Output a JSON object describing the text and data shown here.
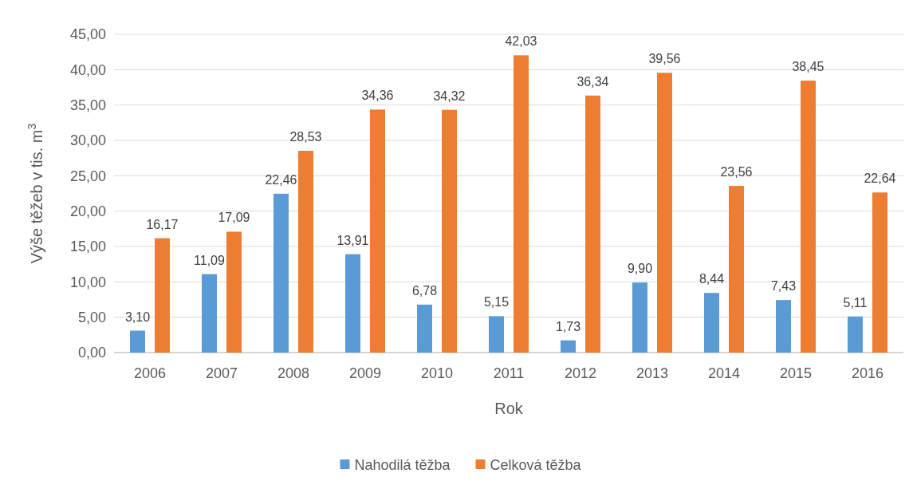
{
  "chart_data": {
    "type": "bar",
    "xlabel": "Rok",
    "ylabel": "Výše těžeb v tis. m$^{3}$",
    "categories": [
      "2006",
      "2007",
      "2008",
      "2009",
      "2010",
      "2011",
      "2012",
      "2013",
      "2014",
      "2015",
      "2016"
    ],
    "series": [
      {
        "name": "Nahodilá těžba",
        "color": "#5b9bd5",
        "values": [
          3.1,
          11.09,
          22.46,
          13.91,
          6.78,
          5.15,
          1.73,
          9.9,
          8.44,
          7.43,
          5.11
        ],
        "value_labels": [
          "3,10",
          "11,09",
          "22,46",
          "13,91",
          "6,78",
          "5,15",
          "1,73",
          "9,90",
          "8,44",
          "7,43",
          "5,11"
        ]
      },
      {
        "name": "Celková těžba",
        "color": "#ed7d31",
        "values": [
          16.17,
          17.09,
          28.53,
          34.36,
          34.32,
          42.03,
          36.34,
          39.56,
          23.56,
          38.45,
          22.64
        ],
        "value_labels": [
          "16,17",
          "17,09",
          "28,53",
          "34,36",
          "34,32",
          "42,03",
          "36,34",
          "39,56",
          "23,56",
          "38,45",
          "22,64"
        ]
      }
    ],
    "ylim": [
      0,
      45
    ],
    "yticks": [
      {
        "value": 0,
        "label": "0,00"
      },
      {
        "value": 5,
        "label": "5,00"
      },
      {
        "value": 10,
        "label": "10,00"
      },
      {
        "value": 15,
        "label": "15,00"
      },
      {
        "value": 20,
        "label": "20,00"
      },
      {
        "value": 25,
        "label": "25,00"
      },
      {
        "value": 30,
        "label": "30,00"
      },
      {
        "value": 35,
        "label": "35,00"
      },
      {
        "value": 40,
        "label": "40,00"
      },
      {
        "value": 45,
        "label": "45,00"
      }
    ],
    "grid": "y",
    "legend": "bottom"
  }
}
